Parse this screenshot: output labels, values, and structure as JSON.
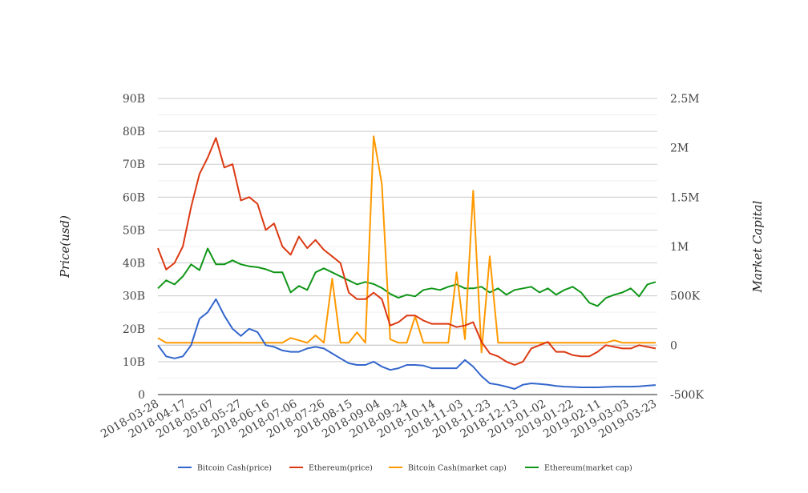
{
  "chart_data": {
    "type": "line",
    "title": "",
    "ylabel_left": "Price(usd)",
    "ylabel_right": "Market Capital",
    "left_axis": {
      "range": [
        0,
        90000000000
      ],
      "ticks": [
        0,
        10000000000,
        20000000000,
        30000000000,
        40000000000,
        50000000000,
        60000000000,
        70000000000,
        80000000000,
        90000000000
      ],
      "tick_labels": [
        "0",
        "10B",
        "20B",
        "30B",
        "40B",
        "50B",
        "60B",
        "70B",
        "80B",
        "90B"
      ]
    },
    "right_axis": {
      "range": [
        -500000,
        2500000
      ],
      "ticks": [
        -500000,
        0,
        500000,
        1000000,
        1500000,
        2000000,
        2500000
      ],
      "tick_labels": [
        "-500K",
        "0",
        "500K",
        "1M",
        "1.5M",
        "2M",
        "2.5M"
      ]
    },
    "x_tick_labels": [
      "2018-03-28",
      "2018-04-17",
      "2018-05-07",
      "2018-05-27",
      "2018-06-16",
      "2018-07-06",
      "2018-07-26",
      "2018-08-15",
      "2018-09-04",
      "2018-09-24",
      "2018-10-14",
      "2018-11-03",
      "2018-11-23",
      "2018-12-13",
      "2019-01-02",
      "2019-01-22",
      "2019-02-11",
      "2019-03-03",
      "2019-03-23"
    ],
    "grid": true,
    "legend_position": "bottom",
    "x": [
      "2018-03-28",
      "2018-04-03",
      "2018-04-09",
      "2018-04-15",
      "2018-04-21",
      "2018-04-27",
      "2018-05-03",
      "2018-05-09",
      "2018-05-15",
      "2018-05-21",
      "2018-05-27",
      "2018-06-02",
      "2018-06-08",
      "2018-06-14",
      "2018-06-20",
      "2018-06-26",
      "2018-07-02",
      "2018-07-08",
      "2018-07-14",
      "2018-07-20",
      "2018-07-26",
      "2018-08-01",
      "2018-08-07",
      "2018-08-13",
      "2018-08-19",
      "2018-08-25",
      "2018-08-31",
      "2018-09-06",
      "2018-09-12",
      "2018-09-18",
      "2018-09-24",
      "2018-09-30",
      "2018-10-06",
      "2018-10-12",
      "2018-10-18",
      "2018-10-24",
      "2018-10-30",
      "2018-11-05",
      "2018-11-11",
      "2018-11-17",
      "2018-11-23",
      "2018-11-29",
      "2018-12-05",
      "2018-12-11",
      "2018-12-17",
      "2018-12-23",
      "2018-12-29",
      "2019-01-04",
      "2019-01-10",
      "2019-01-16",
      "2019-01-22",
      "2019-01-28",
      "2019-02-03",
      "2019-02-09",
      "2019-02-15",
      "2019-02-21",
      "2019-02-27",
      "2019-03-05",
      "2019-03-11",
      "2019-03-17",
      "2019-03-23"
    ],
    "series": [
      {
        "name": "Bitcoin Cash(price)",
        "axis": "left",
        "color": "#3366cc",
        "unit": "B",
        "values": [
          15,
          11.6,
          11,
          11.6,
          15,
          23,
          25,
          29,
          24,
          20,
          17.8,
          20,
          19,
          15,
          14.5,
          13.4,
          13,
          13,
          14,
          14.5,
          14,
          12.5,
          11,
          9.5,
          9,
          9,
          10,
          8.5,
          7.5,
          8,
          9,
          9,
          8.8,
          8,
          8,
          8,
          8,
          10.5,
          8.5,
          5.6,
          3.4,
          3,
          2.4,
          1.7,
          3,
          3.4,
          3.2,
          3,
          2.6,
          2.4,
          2.3,
          2.2,
          2.2,
          2.2,
          2.3,
          2.4,
          2.4,
          2.4,
          2.5,
          2.7,
          2.9
        ]
      },
      {
        "name": "Ethereum(price)",
        "axis": "left",
        "color": "#dc3912",
        "unit": "B",
        "values": [
          44.5,
          38,
          40,
          45,
          57,
          67,
          72,
          78,
          69,
          70,
          59,
          60,
          58,
          50,
          52,
          45,
          42.5,
          48,
          44.5,
          47,
          44,
          42,
          40,
          31,
          29,
          29,
          31,
          29,
          21,
          22,
          24,
          24,
          22.5,
          21.5,
          21.5,
          21.5,
          20.5,
          21,
          22,
          16,
          12.5,
          11.6,
          10,
          9,
          10,
          14,
          15,
          16,
          13,
          13,
          12,
          11.6,
          11.6,
          13,
          15,
          14.5,
          14,
          14,
          15,
          14.5,
          14
        ]
      },
      {
        "name": "Bitcoin Cash(market cap)",
        "axis": "right",
        "color": "#ff9900",
        "unit": "K",
        "values": [
          73,
          25,
          25,
          25,
          25,
          25,
          25,
          25,
          25,
          25,
          25,
          25,
          25,
          25,
          25,
          25,
          73,
          50,
          25,
          100,
          25,
          673,
          25,
          25,
          130,
          25,
          2117,
          1630,
          60,
          25,
          25,
          292,
          25,
          25,
          25,
          25,
          738,
          60,
          1565,
          -73,
          900,
          25,
          25,
          25,
          25,
          25,
          25,
          25,
          25,
          25,
          25,
          25,
          25,
          25,
          25,
          50,
          25,
          25,
          25,
          25,
          25
        ]
      },
      {
        "name": "Ethereum(market cap)",
        "axis": "right",
        "color": "#109618",
        "unit": "K",
        "values": [
          576,
          657,
          616,
          697,
          819,
          760,
          980,
          819,
          819,
          860,
          819,
          800,
          790,
          770,
          738,
          738,
          535,
          600,
          560,
          738,
          779,
          738,
          697,
          657,
          616,
          641,
          620,
          580,
          520,
          480,
          511,
          495,
          560,
          576,
          560,
          592,
          616,
          576,
          576,
          592,
          535,
          576,
          511,
          560,
          576,
          592,
          535,
          576,
          511,
          560,
          592,
          535,
          430,
          397,
          479,
          511,
          535,
          576,
          495,
          616,
          641
        ]
      }
    ]
  }
}
